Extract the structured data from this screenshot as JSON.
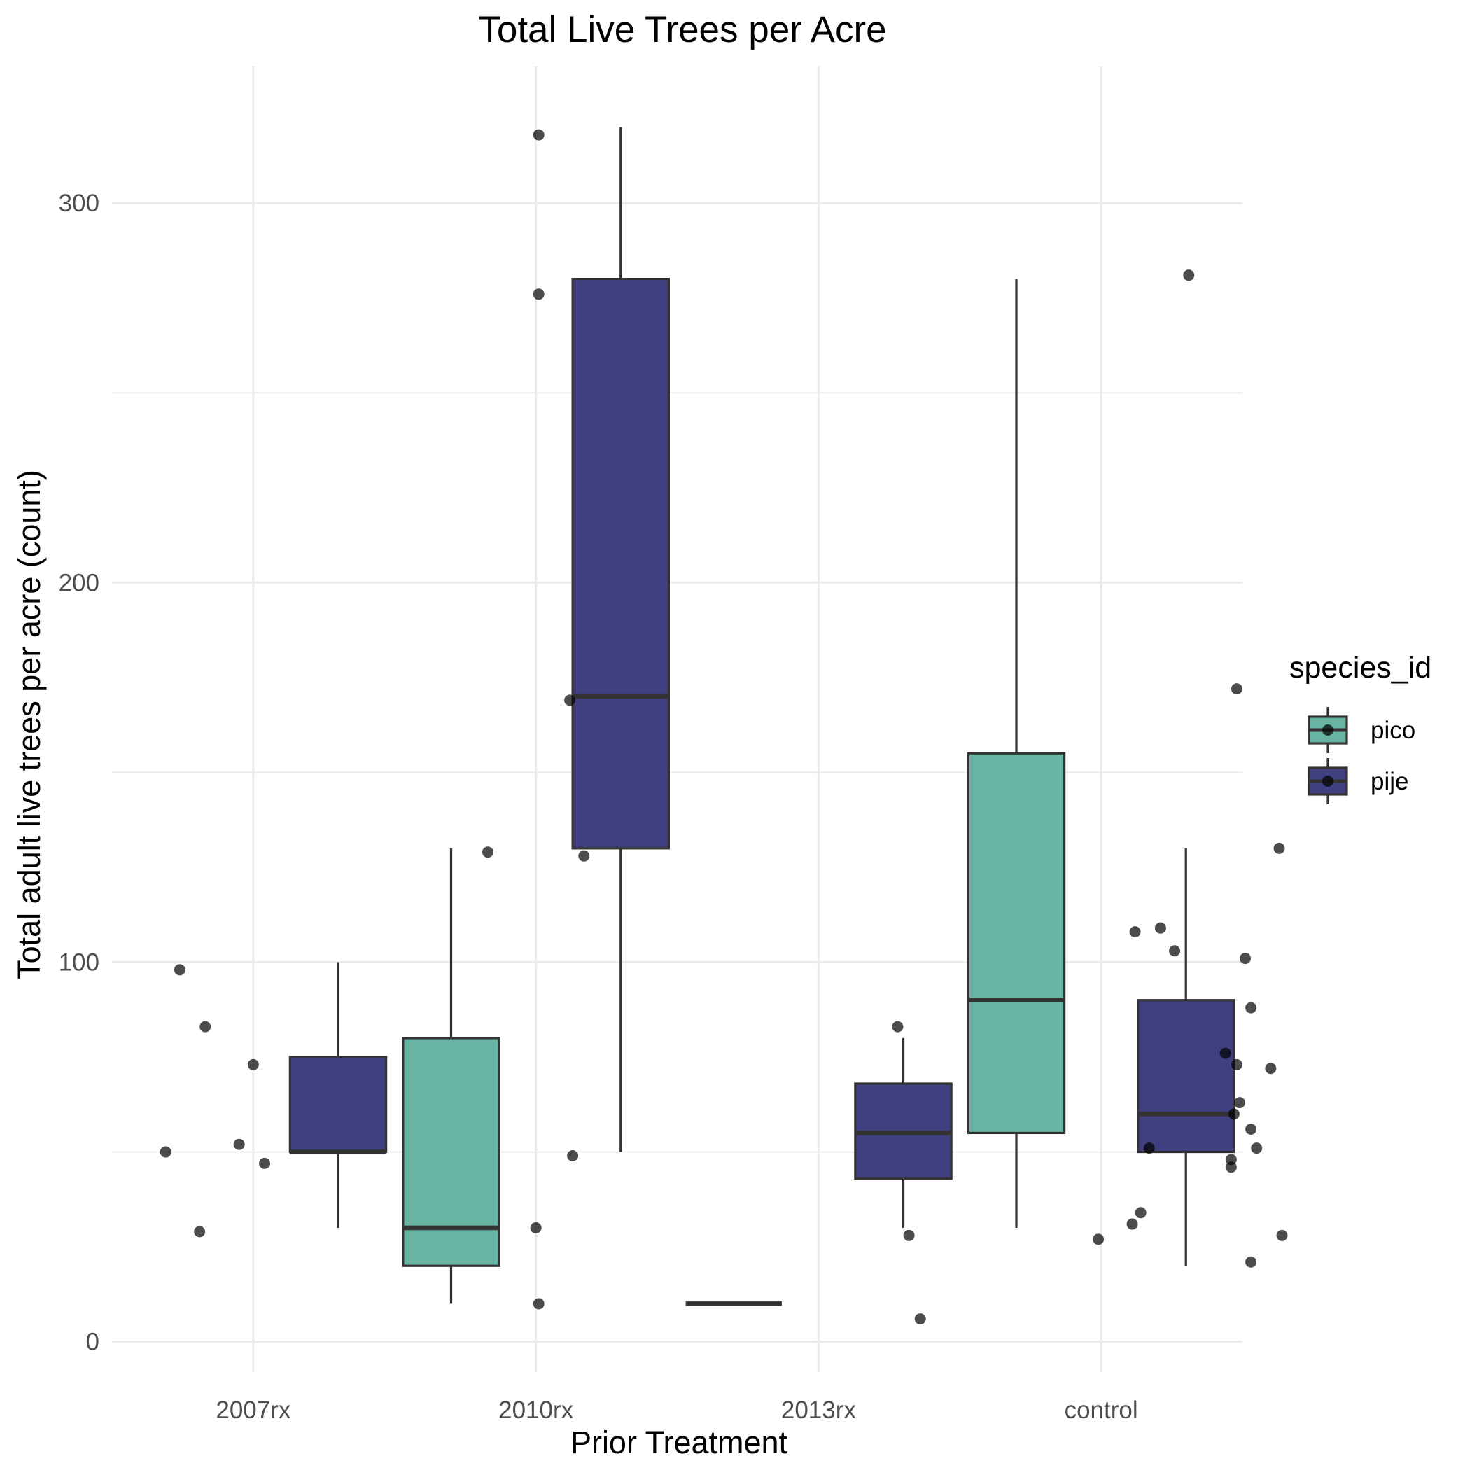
{
  "chart_data": {
    "type": "box",
    "title": "Total Live Trees per Acre",
    "xlabel": "Prior Treatment",
    "ylabel": "Total adult live trees per acre (count)",
    "categories": [
      "2007rx",
      "2010rx",
      "2013rx",
      "control"
    ],
    "yticks": [
      0,
      100,
      200,
      300
    ],
    "ylim": [
      -8,
      336
    ],
    "grid": true,
    "legend": {
      "title": "species_id",
      "position": "right",
      "entries": [
        {
          "name": "pico",
          "color": "#69b3a2"
        },
        {
          "name": "pije",
          "color": "#404080"
        }
      ]
    },
    "series": [
      {
        "name": "pico",
        "color": "#69b3a2",
        "boxes": [
          {
            "category": "2010rx",
            "lower_whisker": 10,
            "q1": 20,
            "median": 30,
            "q3": 80,
            "upper_whisker": 130,
            "points": [
              {
                "x": 0.5,
                "y": 30
              },
              {
                "x": 0.33,
                "y": 129
              },
              {
                "x": 0.67,
                "y": 128
              },
              {
                "x": 0.51,
                "y": 10
              }
            ]
          },
          {
            "category": "2013rx",
            "lower_whisker": 10,
            "q1": 10,
            "median": 10,
            "q3": 10,
            "upper_whisker": 10,
            "points": [
              {
                "x": 0.78,
                "y": 83
              },
              {
                "x": 0.82,
                "y": 28
              },
              {
                "x": 0.86,
                "y": 6
              }
            ]
          },
          {
            "category": "control",
            "lower_whisker": 30,
            "q1": 55,
            "median": 90,
            "q3": 155,
            "upper_whisker": 280,
            "points": [
              {
                "x": 0.81,
                "y": 281
              },
              {
                "x": 0.62,
                "y": 108
              },
              {
                "x": 0.71,
                "y": 109
              },
              {
                "x": 0.76,
                "y": 103
              },
              {
                "x": 0.67,
                "y": 51
              },
              {
                "x": 0.64,
                "y": 34
              },
              {
                "x": 0.61,
                "y": 31
              },
              {
                "x": 0.49,
                "y": 27
              }
            ]
          }
        ]
      },
      {
        "name": "pije",
        "color": "#404080",
        "boxes": [
          {
            "category": "2007rx",
            "lower_whisker": 30,
            "q1": 50,
            "median": 50,
            "q3": 75,
            "upper_whisker": 100,
            "points": [
              {
                "x": 0.24,
                "y": 98
              },
              {
                "x": 0.33,
                "y": 83
              },
              {
                "x": 0.5,
                "y": 73
              },
              {
                "x": 0.45,
                "y": 52
              },
              {
                "x": 0.19,
                "y": 50
              },
              {
                "x": 0.54,
                "y": 47
              },
              {
                "x": 0.31,
                "y": 29
              }
            ]
          },
          {
            "category": "2010rx",
            "lower_whisker": 50,
            "q1": 130,
            "median": 170,
            "q3": 280,
            "upper_whisker": 320,
            "points": [
              {
                "x": 0.51,
                "y": 318
              },
              {
                "x": 0.51,
                "y": 276
              },
              {
                "x": 0.62,
                "y": 169
              },
              {
                "x": 0.63,
                "y": 49
              }
            ]
          },
          {
            "category": "2013rx",
            "lower_whisker": 30,
            "q1": 43,
            "median": 55,
            "q3": 68,
            "upper_whisker": 80,
            "points": []
          },
          {
            "category": "control",
            "lower_whisker": 20,
            "q1": 50,
            "median": 60,
            "q3": 90,
            "upper_whisker": 130,
            "points": [
              {
                "x": 0.98,
                "y": 172
              },
              {
                "x": 1.13,
                "y": 130
              },
              {
                "x": 1.01,
                "y": 101
              },
              {
                "x": 1.03,
                "y": 88
              },
              {
                "x": 0.94,
                "y": 76
              },
              {
                "x": 0.98,
                "y": 73
              },
              {
                "x": 1.1,
                "y": 72
              },
              {
                "x": 0.99,
                "y": 63
              },
              {
                "x": 0.97,
                "y": 60
              },
              {
                "x": 1.03,
                "y": 56
              },
              {
                "x": 1.05,
                "y": 51
              },
              {
                "x": 0.96,
                "y": 48
              },
              {
                "x": 0.96,
                "y": 46
              },
              {
                "x": 1.14,
                "y": 28
              },
              {
                "x": 1.03,
                "y": 21
              }
            ]
          }
        ]
      }
    ]
  }
}
